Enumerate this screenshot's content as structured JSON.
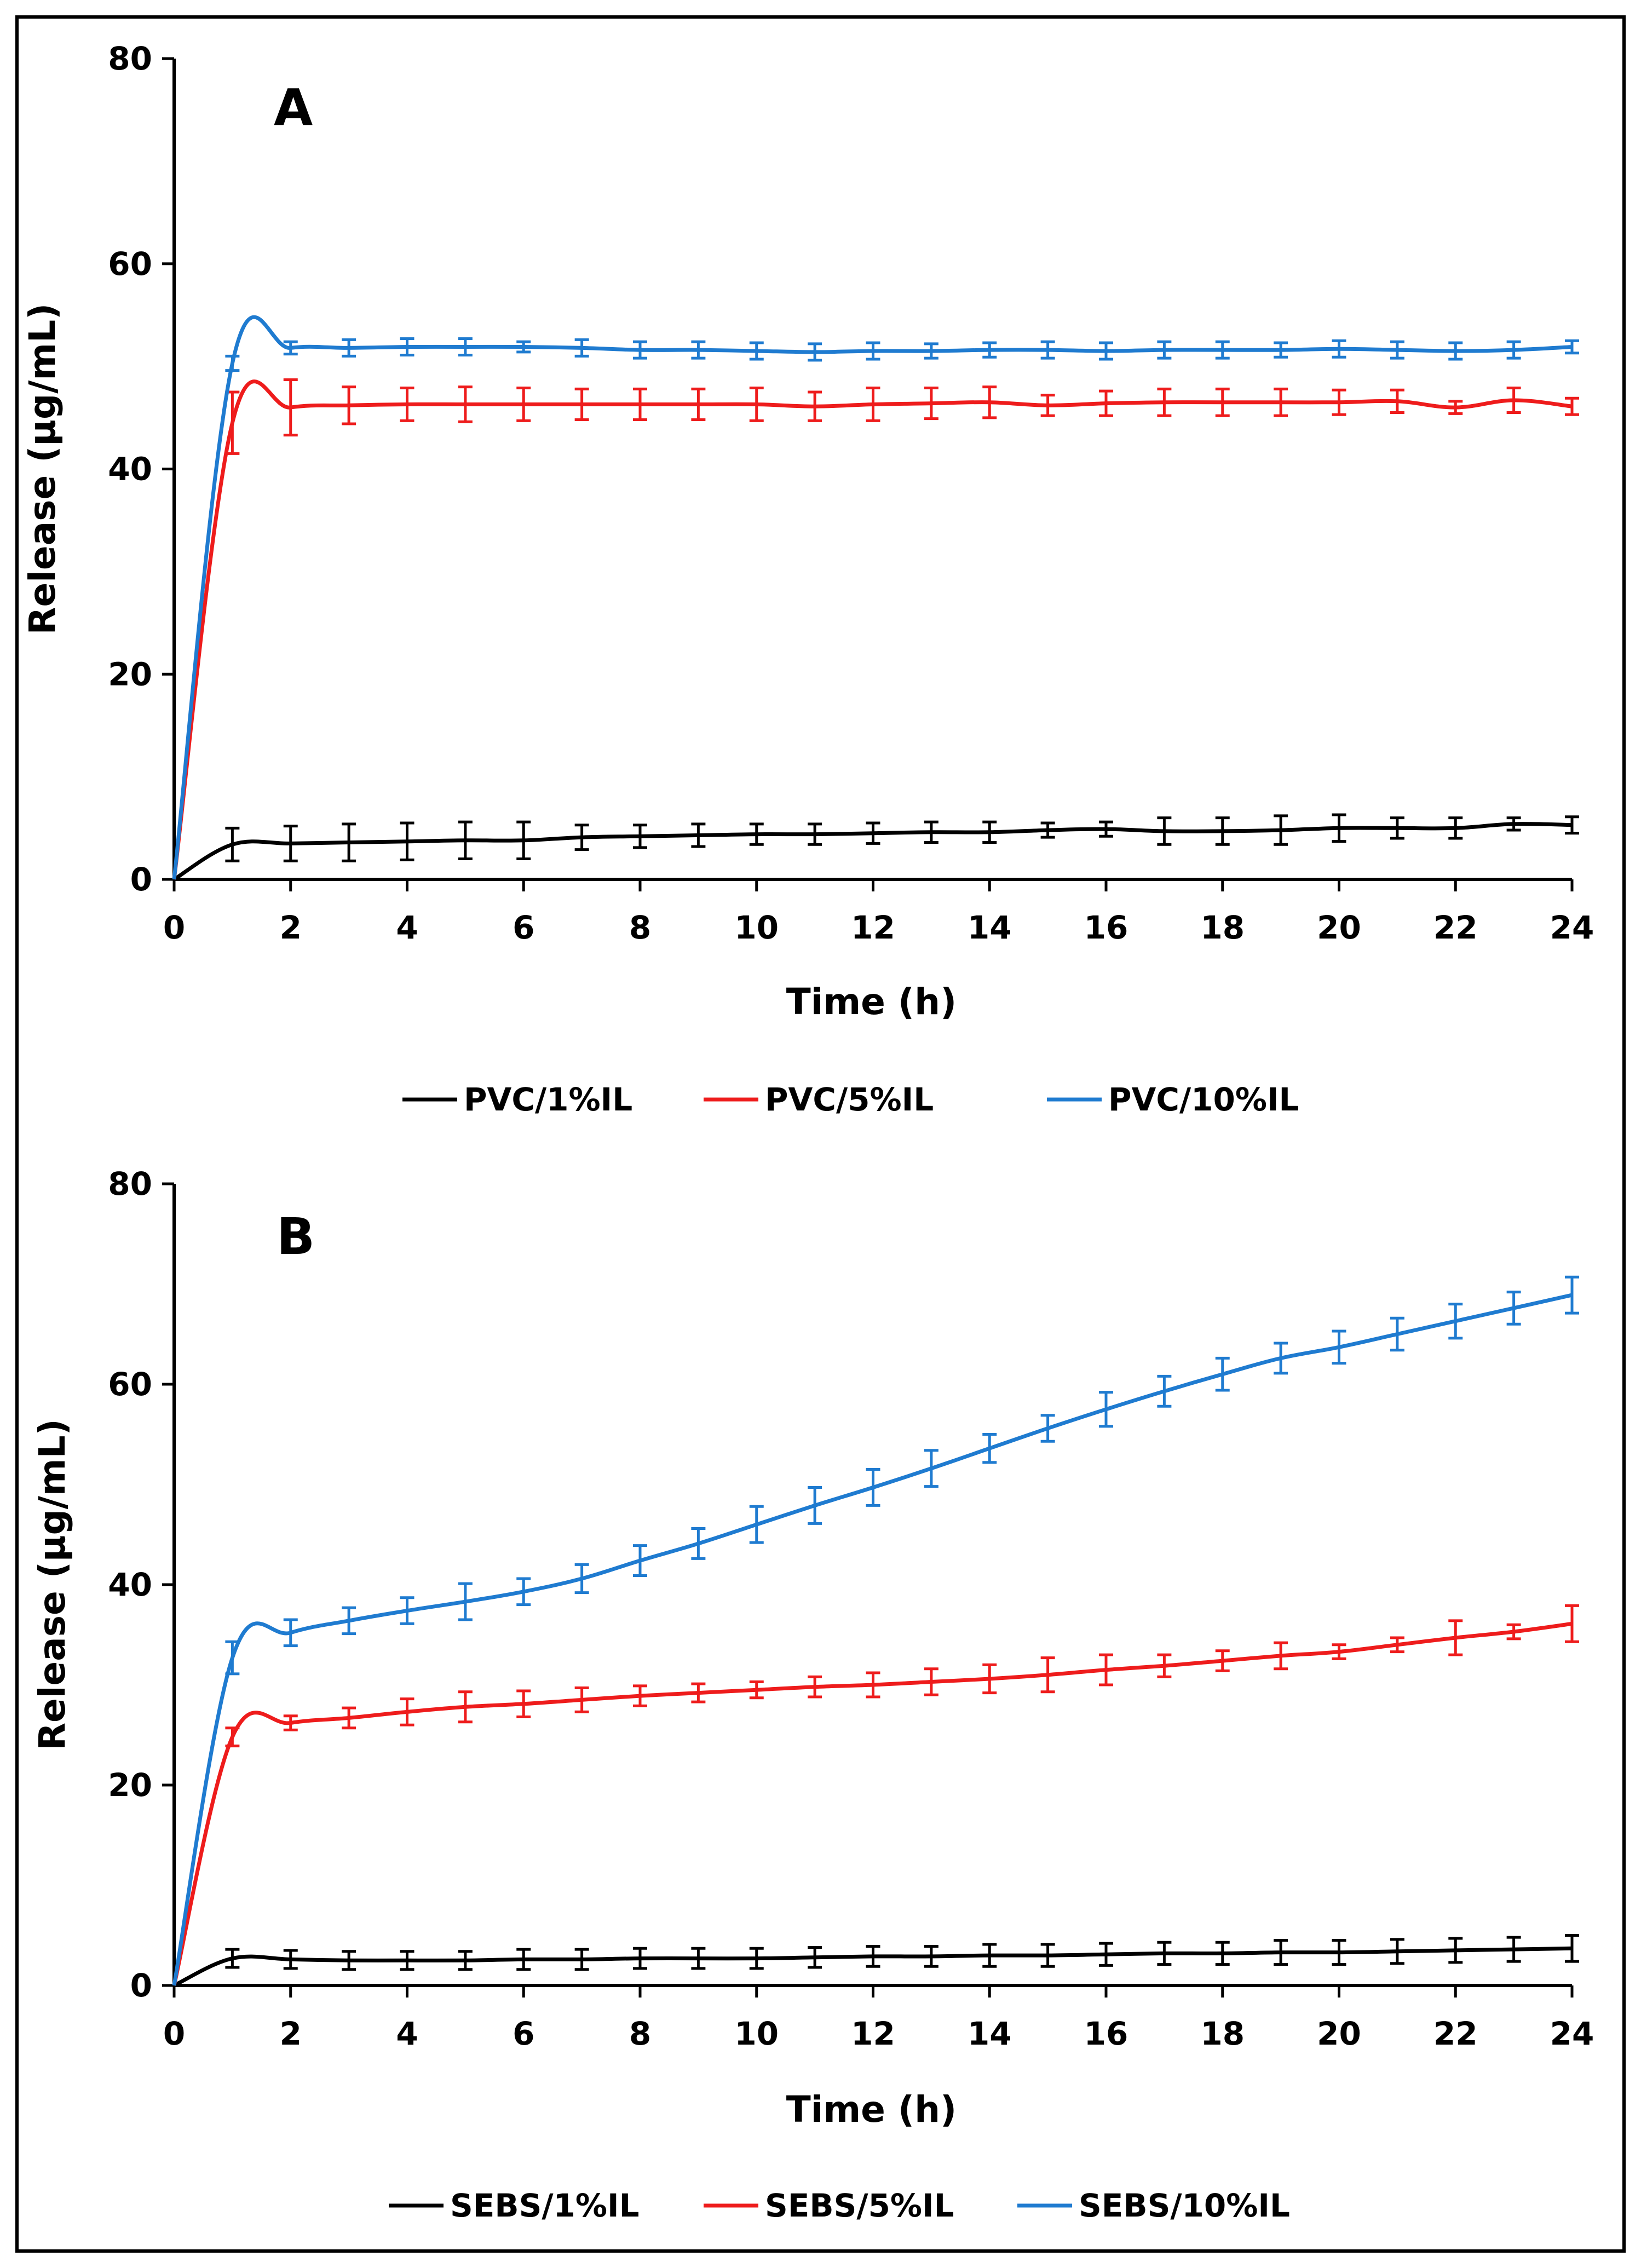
{
  "chart_data": [
    {
      "type": "line",
      "panel_label": "A",
      "xlabel": "Time (h)",
      "ylabel": "Release (µg/mL)",
      "xlim": [
        0,
        24
      ],
      "ylim": [
        0,
        80
      ],
      "xticks": [
        0,
        2,
        4,
        6,
        8,
        10,
        12,
        14,
        16,
        18,
        20,
        22,
        24
      ],
      "yticks": [
        0,
        20,
        40,
        60,
        80
      ],
      "grid": false,
      "legend_position": "bottom",
      "x": [
        0,
        1,
        2,
        3,
        4,
        5,
        6,
        7,
        8,
        9,
        10,
        11,
        12,
        13,
        14,
        15,
        16,
        17,
        18,
        19,
        20,
        21,
        22,
        23,
        24
      ],
      "series": [
        {
          "name": "PVC/1%IL",
          "color": "#000000",
          "values": [
            0,
            3.4,
            3.5,
            3.6,
            3.7,
            3.8,
            3.8,
            4.1,
            4.2,
            4.3,
            4.4,
            4.4,
            4.5,
            4.6,
            4.6,
            4.8,
            4.9,
            4.7,
            4.7,
            4.8,
            5.0,
            5.0,
            5.0,
            5.4,
            5.3
          ],
          "errors": [
            0,
            1.6,
            1.7,
            1.8,
            1.8,
            1.8,
            1.8,
            1.2,
            1.1,
            1.1,
            1.0,
            1.0,
            1.0,
            1.0,
            1.0,
            0.7,
            0.7,
            1.3,
            1.3,
            1.4,
            1.3,
            1.0,
            1.0,
            0.6,
            0.8
          ]
        },
        {
          "name": "PVC/5%IL",
          "color": "#ee1c1c",
          "values": [
            0,
            44.5,
            46.0,
            46.2,
            46.3,
            46.3,
            46.3,
            46.3,
            46.3,
            46.3,
            46.3,
            46.1,
            46.3,
            46.4,
            46.5,
            46.2,
            46.4,
            46.5,
            46.5,
            46.5,
            46.5,
            46.6,
            46.0,
            46.7,
            46.1
          ],
          "errors": [
            0,
            3.0,
            2.7,
            1.8,
            1.6,
            1.7,
            1.6,
            1.5,
            1.5,
            1.5,
            1.6,
            1.4,
            1.6,
            1.5,
            1.5,
            1.0,
            1.2,
            1.3,
            1.3,
            1.3,
            1.2,
            1.1,
            0.6,
            1.2,
            0.8
          ]
        },
        {
          "name": "PVC/10%IL",
          "color": "#1f7bd0",
          "values": [
            0,
            50.3,
            51.8,
            51.8,
            51.9,
            51.9,
            51.9,
            51.8,
            51.6,
            51.6,
            51.5,
            51.4,
            51.5,
            51.5,
            51.6,
            51.6,
            51.5,
            51.6,
            51.6,
            51.6,
            51.7,
            51.6,
            51.5,
            51.6,
            51.9
          ],
          "errors": [
            0,
            0.7,
            0.6,
            0.8,
            0.8,
            0.8,
            0.5,
            0.8,
            0.8,
            0.8,
            0.8,
            0.8,
            0.8,
            0.7,
            0.7,
            0.8,
            0.8,
            0.8,
            0.8,
            0.7,
            0.8,
            0.8,
            0.8,
            0.8,
            0.6
          ]
        }
      ]
    },
    {
      "type": "line",
      "panel_label": "B",
      "xlabel": "Time (h)",
      "ylabel": "Release (µg/mL)",
      "xlim": [
        0,
        24
      ],
      "ylim": [
        0,
        80
      ],
      "xticks": [
        0,
        2,
        4,
        6,
        8,
        10,
        12,
        14,
        16,
        18,
        20,
        22,
        24
      ],
      "yticks": [
        0,
        20,
        40,
        60,
        80
      ],
      "grid": false,
      "legend_position": "bottom",
      "x": [
        0,
        1,
        2,
        3,
        4,
        5,
        6,
        7,
        8,
        9,
        10,
        11,
        12,
        13,
        14,
        15,
        16,
        17,
        18,
        19,
        20,
        21,
        22,
        23,
        24
      ],
      "series": [
        {
          "name": "SEBS/1%IL",
          "color": "#000000",
          "values": [
            0,
            2.7,
            2.6,
            2.5,
            2.5,
            2.5,
            2.6,
            2.6,
            2.7,
            2.7,
            2.7,
            2.8,
            2.9,
            2.9,
            3.0,
            3.0,
            3.1,
            3.2,
            3.2,
            3.3,
            3.3,
            3.4,
            3.5,
            3.6,
            3.7
          ],
          "errors": [
            0,
            0.9,
            0.9,
            0.9,
            0.9,
            0.9,
            1.0,
            1.0,
            1.0,
            1.0,
            1.0,
            1.0,
            1.0,
            1.0,
            1.1,
            1.1,
            1.1,
            1.1,
            1.1,
            1.2,
            1.2,
            1.2,
            1.2,
            1.2,
            1.3
          ]
        },
        {
          "name": "SEBS/5%IL",
          "color": "#ee1c1c",
          "values": [
            0,
            24.8,
            26.2,
            26.7,
            27.3,
            27.8,
            28.1,
            28.5,
            28.9,
            29.2,
            29.5,
            29.8,
            30.0,
            30.3,
            30.6,
            31.0,
            31.5,
            31.9,
            32.4,
            32.9,
            33.3,
            34.0,
            34.7,
            35.3,
            36.1
          ],
          "errors": [
            0,
            0.9,
            0.7,
            1.0,
            1.3,
            1.5,
            1.3,
            1.2,
            1.0,
            0.9,
            0.8,
            1.0,
            1.2,
            1.3,
            1.4,
            1.7,
            1.5,
            1.1,
            1.0,
            1.3,
            0.7,
            0.7,
            1.7,
            0.7,
            1.8
          ]
        },
        {
          "name": "SEBS/10%IL",
          "color": "#1f7bd0",
          "values": [
            0,
            32.7,
            35.2,
            36.4,
            37.4,
            38.3,
            39.3,
            40.6,
            42.4,
            44.1,
            46.0,
            47.9,
            49.7,
            51.6,
            53.6,
            55.6,
            57.5,
            59.3,
            61.0,
            62.6,
            63.7,
            65.0,
            66.3,
            67.6,
            68.9
          ],
          "errors": [
            0,
            1.6,
            1.3,
            1.3,
            1.3,
            1.8,
            1.3,
            1.4,
            1.5,
            1.5,
            1.8,
            1.8,
            1.8,
            1.8,
            1.4,
            1.3,
            1.7,
            1.5,
            1.6,
            1.5,
            1.6,
            1.6,
            1.7,
            1.6,
            1.8
          ]
        }
      ]
    }
  ]
}
